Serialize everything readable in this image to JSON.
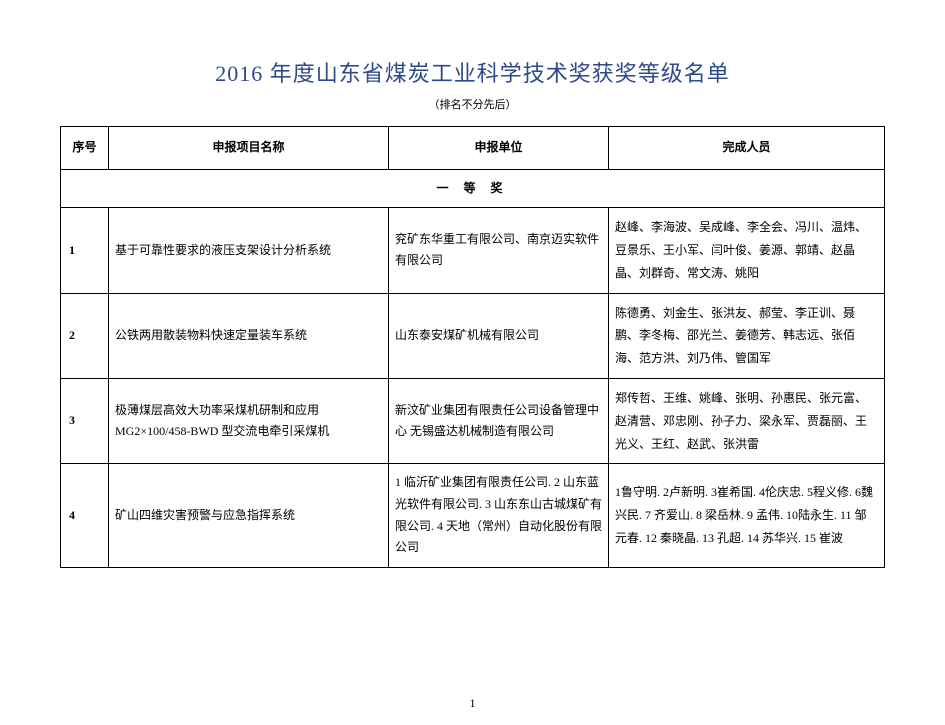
{
  "title": "2016 年度山东省煤炭工业科学技术奖获奖等级名单",
  "subtitle": "（排名不分先后）",
  "headers": {
    "seq": "序号",
    "project": "申报项目名称",
    "unit": "申报单位",
    "personnel": "完成人员"
  },
  "section_label": "一 等 奖",
  "rows": [
    {
      "seq": "1",
      "project": "基于可靠性要求的液压支架设计分析系统",
      "unit": "兖矿东华重工有限公司、南京迈实软件有限公司",
      "personnel": "赵峰、李海波、吴成峰、李全会、冯川、温炜、豆景乐、王小军、闫叶俊、姜源、郭靖、赵晶晶、刘群奇、常文涛、姚阳"
    },
    {
      "seq": "2",
      "project": "公铁两用散装物料快速定量装车系统",
      "unit": "山东泰安煤矿机械有限公司",
      "personnel": "陈德勇、刘金生、张洪友、郝莹、李正训、聂鹏、李冬梅、邵光兰、姜德芳、韩志远、张佰海、范方洪、刘乃伟、管国军"
    },
    {
      "seq": "3",
      "project": "极薄煤层高效大功率采煤机研制和应用MG2×100/458-BWD 型交流电牵引采煤机",
      "unit": "新汶矿业集团有限责任公司设备管理中心 无锡盛达机械制造有限公司",
      "personnel": "郑传哲、王维、姚峰、张明、孙惠民、张元富、赵清营、邓忠刚、孙子力、梁永军、贾磊丽、王光义、王红、赵武、张洪雷"
    },
    {
      "seq": "4",
      "project": "矿山四维灾害预警与应急指挥系统",
      "unit": "1 临沂矿业集团有限责任公司. 2 山东蓝光软件有限公司. 3 山东东山古城煤矿有限公司. 4 天地（常州）自动化股份有限公司",
      "personnel": "1鲁守明. 2卢新明. 3崔希国. 4伦庆忠. 5程义修. 6魏兴民. 7 齐爱山. 8 梁岳林. 9 孟伟. 10陆永生. 11 邹元春. 12 秦晓晶. 13 孔超. 14 苏华兴. 15 崔波"
    }
  ],
  "page_number": "1",
  "colors": {
    "title_color": "#2e4a8a",
    "text_color": "#000000",
    "background": "#ffffff",
    "border_color": "#000000"
  }
}
